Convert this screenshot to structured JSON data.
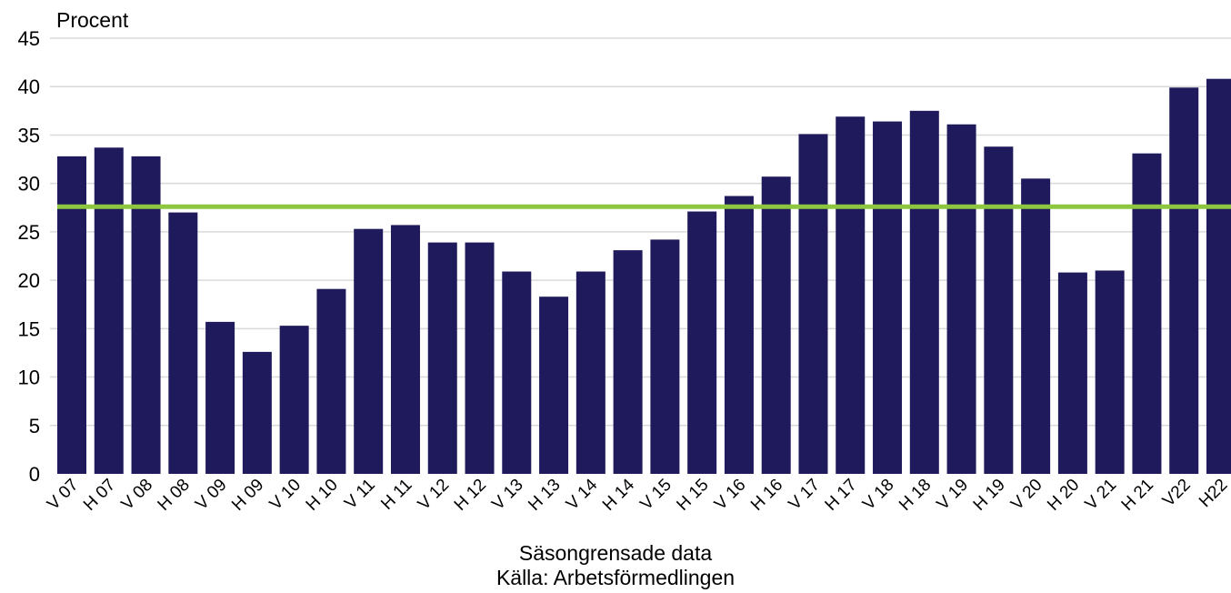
{
  "chart_data": {
    "type": "bar",
    "ylabel": "Procent",
    "ylim": [
      0,
      45
    ],
    "yticks": [
      0,
      5,
      10,
      15,
      20,
      25,
      30,
      35,
      40,
      45
    ],
    "grid": true,
    "categories": [
      "V 07",
      "H 07",
      "V 08",
      "H 08",
      "V 09",
      "H 09",
      "V 10",
      "H 10",
      "V 11",
      "H 11",
      "V 12",
      "H 12",
      "V 13",
      "H 13",
      "V 14",
      "H 14",
      "V 15",
      "H 15",
      "V 16",
      "H 16",
      "V 17",
      "H 17",
      "V 18",
      "H 18",
      "V 19",
      "H 19",
      "V 20",
      "H 20",
      "V 21",
      "H 21",
      "V22",
      "H22"
    ],
    "series": [
      {
        "type": "bar",
        "values": [
          32.8,
          33.7,
          32.8,
          27.0,
          15.7,
          12.6,
          15.3,
          19.1,
          25.3,
          25.7,
          23.9,
          23.9,
          20.9,
          18.3,
          20.9,
          23.1,
          24.2,
          27.1,
          28.7,
          30.7,
          35.1,
          36.9,
          36.4,
          37.5,
          36.1,
          33.8,
          30.5,
          20.8,
          21.0,
          33.1,
          39.9,
          40.8
        ]
      },
      {
        "type": "line",
        "values": [
          27.6,
          27.6,
          27.6,
          27.6,
          27.6,
          27.6,
          27.6,
          27.6,
          27.6,
          27.6,
          27.6,
          27.6,
          27.6,
          27.6,
          27.6,
          27.6,
          27.6,
          27.6,
          27.6,
          27.6,
          27.6,
          27.6,
          27.6,
          27.6,
          27.6,
          27.6,
          27.6,
          27.6,
          27.6,
          27.6,
          27.6,
          27.6
        ]
      }
    ],
    "colors": {
      "bar": "#1f1a5c",
      "line": "#8dc63f",
      "grid": "#d9d9d9"
    }
  },
  "captions": {
    "line1": "Säsongrensade data",
    "line2": "Källa: Arbetsförmedlingen"
  }
}
